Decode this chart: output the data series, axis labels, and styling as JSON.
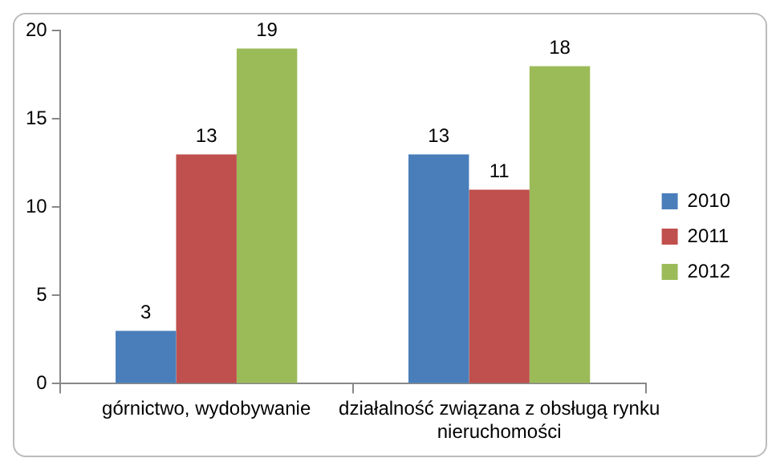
{
  "chart_data": {
    "type": "bar",
    "categories": [
      "górnictwo, wydobywanie",
      "działalność związana z obsługą rynku nieruchomości"
    ],
    "series": [
      {
        "name": "2010",
        "color": "#4a7ebb",
        "values": [
          3,
          13
        ]
      },
      {
        "name": "2011",
        "color": "#c0504d",
        "values": [
          13,
          11
        ]
      },
      {
        "name": "2012",
        "color": "#9bbb59",
        "values": [
          19,
          18
        ]
      }
    ],
    "ylim": [
      0,
      20
    ],
    "yticks": [
      0,
      5,
      10,
      15,
      20
    ],
    "grid": false,
    "legend": "right",
    "data_labels": true
  }
}
